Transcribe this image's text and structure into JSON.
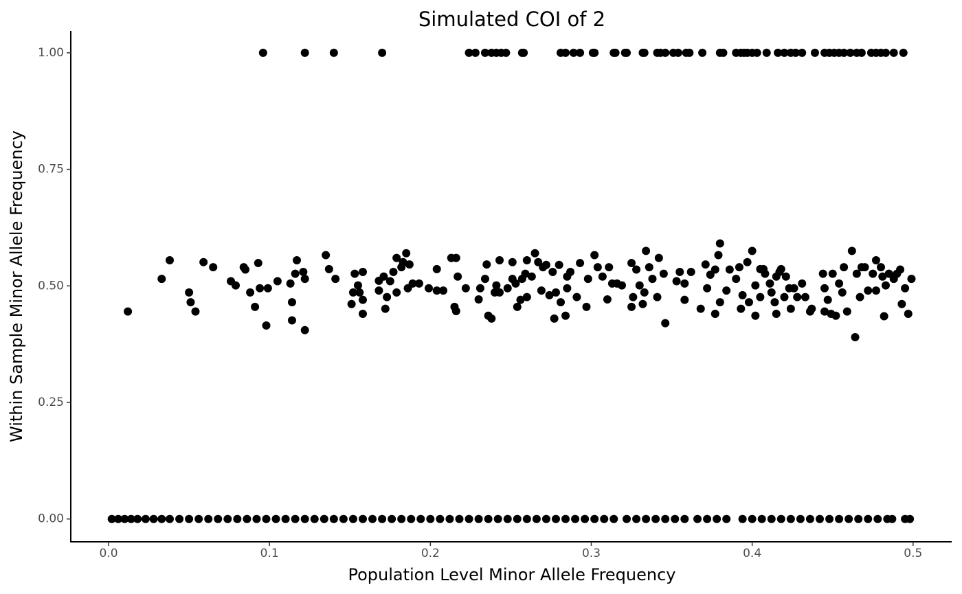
{
  "chart_data": {
    "type": "scatter",
    "title": "Simulated COI of 2",
    "x_label": "Population Level Minor Allele Frequency",
    "y_label": "Within Sample Minor Allele Frequency",
    "color": "#000000",
    "xlim": [
      -0.0235,
      0.524
    ],
    "ylim": [
      -0.049,
      1.047
    ],
    "xticks": [
      {
        "value": 0,
        "label": "0.0"
      },
      0.1,
      0.2,
      0.3,
      0.4,
      0.5
    ],
    "yticks": [
      {
        "value": 0,
        "label": "0.00"
      },
      {
        "value": 0.25,
        "label": "0.25"
      },
      {
        "value": 0.5,
        "label": "0.50"
      },
      {
        "value": 0.75,
        "label": "0.75"
      },
      {
        "value": 1,
        "label": "1.00"
      }
    ],
    "grid": false,
    "x": [
      0.096,
      0.122,
      0.14,
      0.17,
      0.224,
      0.228,
      0.234,
      0.238,
      0.241,
      0.244,
      0.247,
      0.257,
      0.258,
      0.281,
      0.284,
      0.289,
      0.293,
      0.301,
      0.302,
      0.314,
      0.315,
      0.321,
      0.322,
      0.332,
      0.333,
      0.341,
      0.343,
      0.346,
      0.351,
      0.354,
      0.359,
      0.361,
      0.369,
      0.38,
      0.382,
      0.39,
      0.393,
      0.395,
      0.397,
      0.4,
      0.403,
      0.409,
      0.416,
      0.42,
      0.424,
      0.427,
      0.431,
      0.439,
      0.445,
      0.448,
      0.451,
      0.454,
      0.457,
      0.461,
      0.465,
      0.468,
      0.474,
      0.477,
      0.48,
      0.483,
      0.488,
      0.494,
      0.012,
      0.033,
      0.038,
      0.05,
      0.051,
      0.054,
      0.059,
      0.065,
      0.076,
      0.079,
      0.084,
      0.085,
      0.088,
      0.091,
      0.093,
      0.094,
      0.098,
      0.099,
      0.105,
      0.113,
      0.114,
      0.114,
      0.116,
      0.117,
      0.121,
      0.122,
      0.122,
      0.135,
      0.137,
      0.141,
      0.151,
      0.152,
      0.153,
      0.155,
      0.156,
      0.158,
      0.158,
      0.158,
      0.168,
      0.168,
      0.171,
      0.172,
      0.173,
      0.175,
      0.177,
      0.179,
      0.179,
      0.182,
      0.183,
      0.185,
      0.186,
      0.187,
      0.189,
      0.193,
      0.199,
      0.204,
      0.204,
      0.208,
      0.213,
      0.215,
      0.216,
      0.216,
      0.217,
      0.222,
      0.23,
      0.231,
      0.234,
      0.235,
      0.236,
      0.238,
      0.24,
      0.241,
      0.243,
      0.243,
      0.248,
      0.251,
      0.251,
      0.253,
      0.254,
      0.256,
      0.257,
      0.259,
      0.26,
      0.26,
      0.263,
      0.265,
      0.267,
      0.269,
      0.27,
      0.272,
      0.274,
      0.276,
      0.277,
      0.278,
      0.28,
      0.281,
      0.284,
      0.285,
      0.285,
      0.287,
      0.291,
      0.293,
      0.297,
      0.298,
      0.302,
      0.304,
      0.307,
      0.31,
      0.311,
      0.313,
      0.316,
      0.319,
      0.325,
      0.325,
      0.326,
      0.328,
      0.33,
      0.332,
      0.333,
      0.334,
      0.336,
      0.338,
      0.341,
      0.342,
      0.345,
      0.346,
      0.353,
      0.355,
      0.358,
      0.358,
      0.362,
      0.368,
      0.371,
      0.372,
      0.374,
      0.377,
      0.377,
      0.379,
      0.38,
      0.38,
      0.384,
      0.386,
      0.39,
      0.392,
      0.393,
      0.394,
      0.397,
      0.398,
      0.4,
      0.402,
      0.402,
      0.405,
      0.405,
      0.407,
      0.408,
      0.411,
      0.412,
      0.414,
      0.415,
      0.415,
      0.417,
      0.418,
      0.42,
      0.421,
      0.423,
      0.424,
      0.426,
      0.428,
      0.431,
      0.433,
      0.436,
      0.437,
      0.445,
      0.444,
      0.445,
      0.447,
      0.449,
      0.45,
      0.452,
      0.454,
      0.456,
      0.457,
      0.459,
      0.462,
      0.464,
      0.465,
      0.467,
      0.468,
      0.47,
      0.472,
      0.475,
      0.477,
      0.477,
      0.48,
      0.481,
      0.482,
      0.483,
      0.485,
      0.488,
      0.49,
      0.492,
      0.493,
      0.495,
      0.497,
      0.499,
      0.002,
      0.006,
      0.01,
      0.014,
      0.018,
      0.023,
      0.028,
      0.033,
      0.038,
      0.044,
      0.05,
      0.056,
      0.062,
      0.068,
      0.074,
      0.08,
      0.086,
      0.092,
      0.098,
      0.104,
      0.11,
      0.116,
      0.122,
      0.128,
      0.134,
      0.14,
      0.146,
      0.152,
      0.158,
      0.164,
      0.17,
      0.176,
      0.182,
      0.188,
      0.194,
      0.2,
      0.206,
      0.212,
      0.218,
      0.224,
      0.23,
      0.236,
      0.242,
      0.248,
      0.254,
      0.26,
      0.266,
      0.272,
      0.278,
      0.284,
      0.29,
      0.296,
      0.302,
      0.308,
      0.314,
      0.322,
      0.328,
      0.334,
      0.34,
      0.346,
      0.352,
      0.358,
      0.366,
      0.372,
      0.378,
      0.384,
      0.394,
      0.4,
      0.406,
      0.412,
      0.418,
      0.424,
      0.43,
      0.436,
      0.442,
      0.448,
      0.454,
      0.46,
      0.466,
      0.472,
      0.478,
      0.484,
      0.487,
      0.495,
      0.498
    ],
    "values": [
      1,
      1,
      1,
      1,
      1,
      1,
      1,
      1,
      1,
      1,
      1,
      1,
      1,
      1,
      1,
      1,
      1,
      1,
      1,
      1,
      1,
      1,
      1,
      1,
      1,
      1,
      1,
      1,
      1,
      1,
      1,
      1,
      1,
      1,
      1,
      1,
      1,
      1,
      1,
      1,
      1,
      1,
      1,
      1,
      1,
      1,
      1,
      1,
      1,
      1,
      1,
      1,
      1,
      1,
      1,
      1,
      1,
      1,
      1,
      1,
      1,
      1,
      0.445,
      0.515,
      0.555,
      0.486,
      0.465,
      0.445,
      0.551,
      0.54,
      0.51,
      0.501,
      0.54,
      0.535,
      0.486,
      0.455,
      0.549,
      0.495,
      0.415,
      0.495,
      0.51,
      0.505,
      0.465,
      0.426,
      0.526,
      0.555,
      0.53,
      0.515,
      0.405,
      0.566,
      0.536,
      0.515,
      0.461,
      0.486,
      0.526,
      0.501,
      0.486,
      0.47,
      0.53,
      0.44,
      0.49,
      0.511,
      0.52,
      0.451,
      0.476,
      0.51,
      0.53,
      0.56,
      0.486,
      0.54,
      0.551,
      0.57,
      0.495,
      0.546,
      0.505,
      0.505,
      0.495,
      0.536,
      0.49,
      0.49,
      0.56,
      0.455,
      0.56,
      0.446,
      0.52,
      0.495,
      0.471,
      0.495,
      0.515,
      0.546,
      0.436,
      0.43,
      0.486,
      0.501,
      0.555,
      0.486,
      0.495,
      0.551,
      0.515,
      0.505,
      0.455,
      0.47,
      0.515,
      0.526,
      0.555,
      0.476,
      0.52,
      0.57,
      0.551,
      0.49,
      0.54,
      0.545,
      0.48,
      0.53,
      0.43,
      0.486,
      0.545,
      0.465,
      0.436,
      0.52,
      0.495,
      0.53,
      0.476,
      0.549,
      0.455,
      0.515,
      0.566,
      0.54,
      0.52,
      0.471,
      0.54,
      0.505,
      0.505,
      0.501,
      0.455,
      0.549,
      0.476,
      0.535,
      0.501,
      0.461,
      0.486,
      0.575,
      0.54,
      0.515,
      0.476,
      0.56,
      0.526,
      0.42,
      0.51,
      0.53,
      0.47,
      0.505,
      0.53,
      0.451,
      0.546,
      0.495,
      0.524,
      0.44,
      0.535,
      0.566,
      0.591,
      0.465,
      0.49,
      0.535,
      0.515,
      0.54,
      0.451,
      0.48,
      0.551,
      0.465,
      0.575,
      0.501,
      0.436,
      0.536,
      0.476,
      0.536,
      0.526,
      0.505,
      0.486,
      0.465,
      0.44,
      0.52,
      0.53,
      0.536,
      0.476,
      0.52,
      0.495,
      0.451,
      0.495,
      0.476,
      0.505,
      0.476,
      0.445,
      0.451,
      0.495,
      0.526,
      0.445,
      0.47,
      0.44,
      0.526,
      0.436,
      0.505,
      0.486,
      0.54,
      0.445,
      0.575,
      0.39,
      0.526,
      0.476,
      0.54,
      0.54,
      0.49,
      0.526,
      0.555,
      0.49,
      0.54,
      0.52,
      0.435,
      0.501,
      0.526,
      0.515,
      0.526,
      0.535,
      0.461,
      0.495,
      0.44,
      0.515,
      0,
      0,
      0,
      0,
      0,
      0,
      0,
      0,
      0,
      0,
      0,
      0,
      0,
      0,
      0,
      0,
      0,
      0,
      0,
      0,
      0,
      0,
      0,
      0,
      0,
      0,
      0,
      0,
      0,
      0,
      0,
      0,
      0,
      0,
      0,
      0,
      0,
      0,
      0,
      0,
      0,
      0,
      0,
      0,
      0,
      0,
      0,
      0,
      0,
      0,
      0,
      0,
      0,
      0,
      0,
      0,
      0,
      0,
      0,
      0,
      0,
      0,
      0,
      0,
      0,
      0,
      0,
      0,
      0,
      0,
      0,
      0,
      0,
      0,
      0,
      0,
      0,
      0,
      0,
      0,
      0,
      0,
      0,
      0,
      0
    ]
  }
}
